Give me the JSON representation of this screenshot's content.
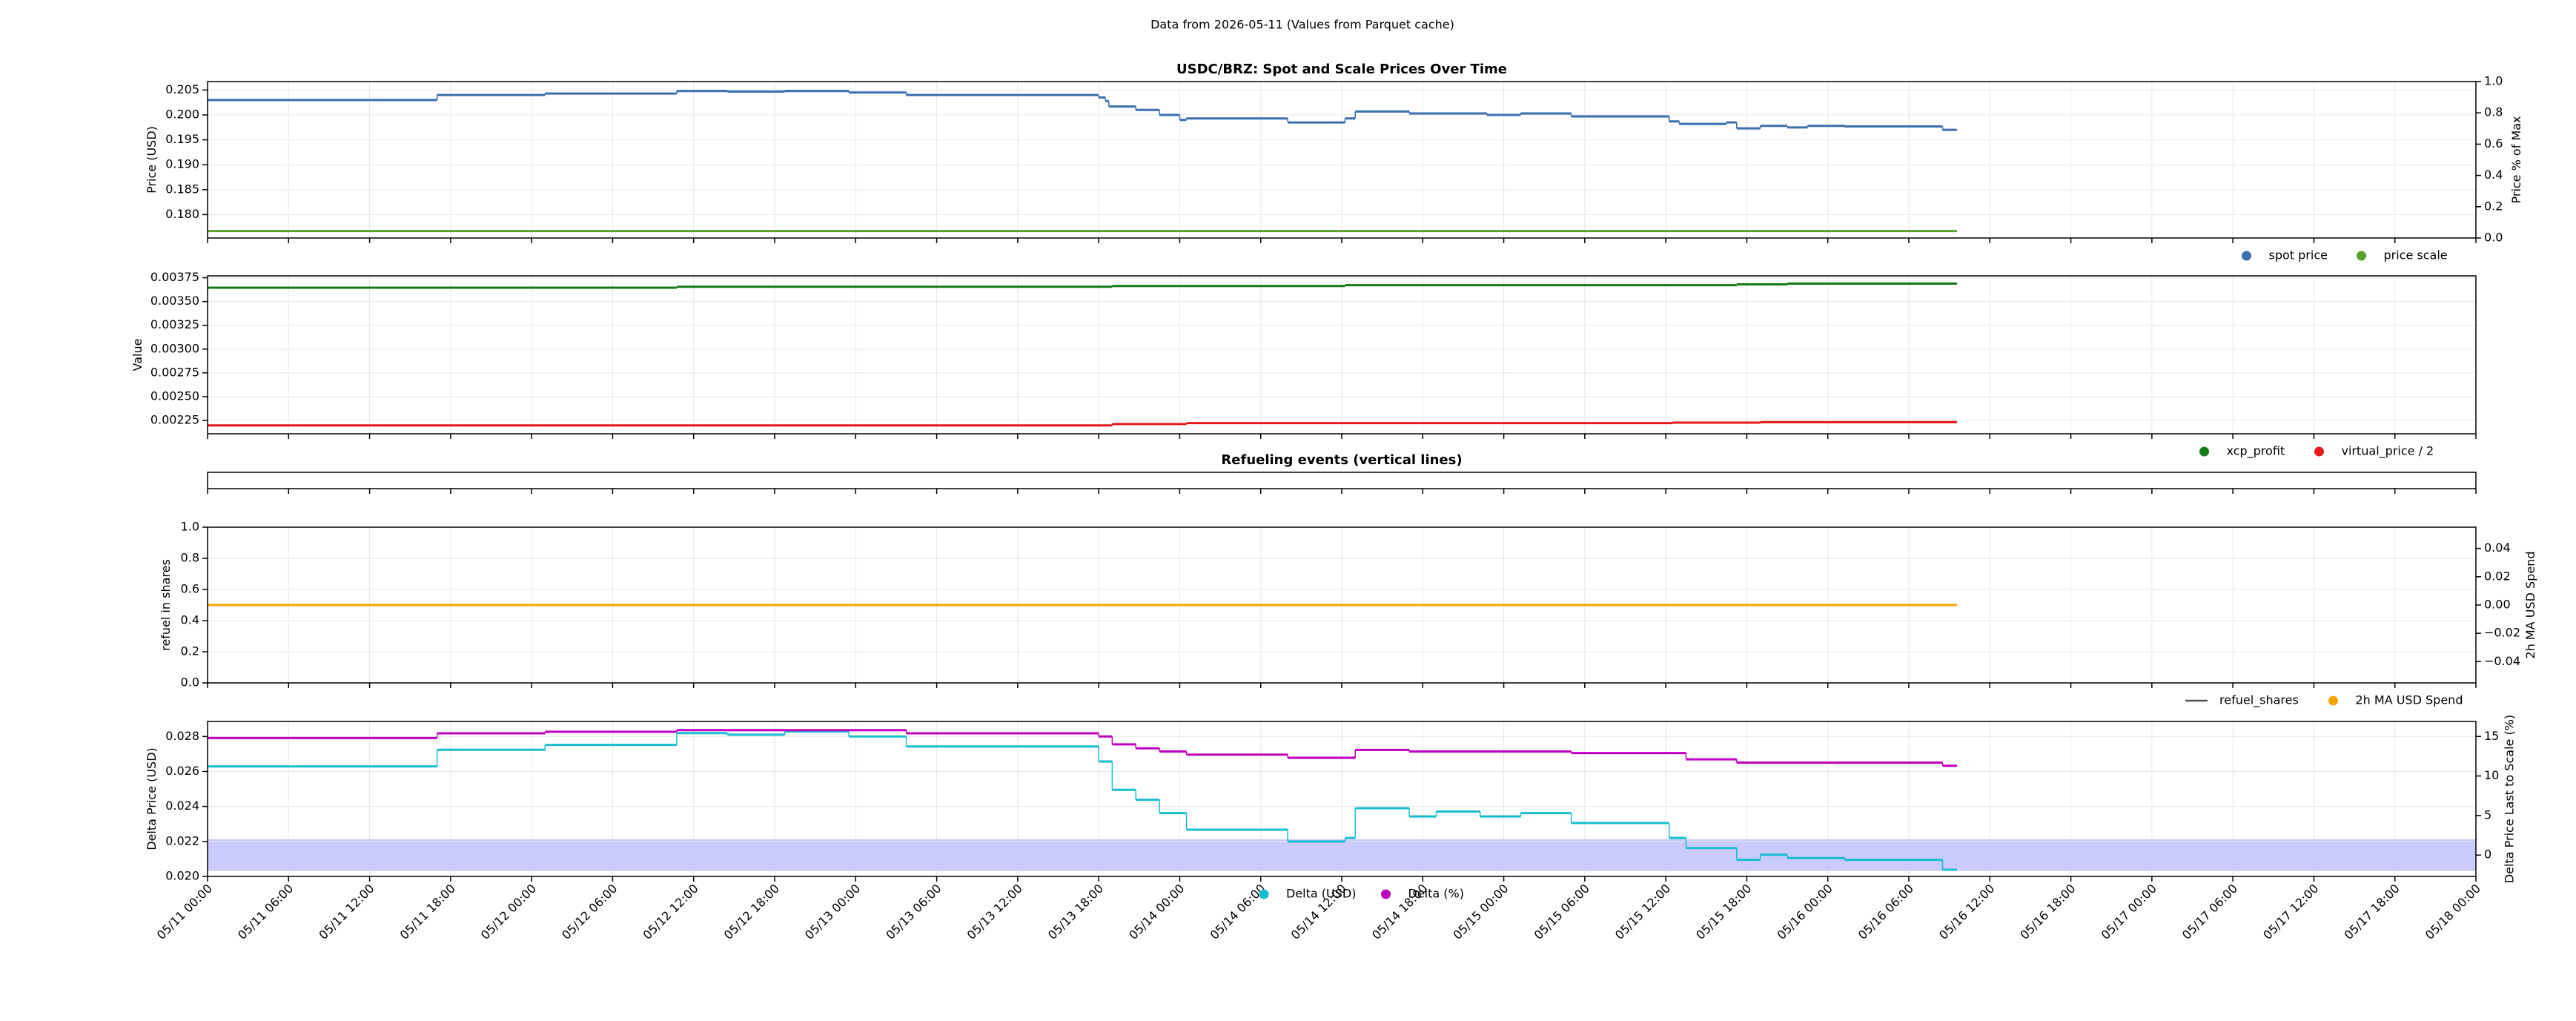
{
  "title": "Data from 2026-05-11 (Values from Parquet cache)",
  "chart_data": [
    {
      "type": "line",
      "title": "USDC/BRZ: Spot and Scale Prices Over Time",
      "ylabel": "Price (USD)",
      "y2label": "Price % of Max",
      "ylim": [
        0.1753,
        0.2067
      ],
      "yticks": [
        {
          "value": 0.18,
          "label": "0.180"
        },
        0.185,
        {
          "value": 0.19,
          "label": "0.190"
        },
        0.195,
        {
          "value": 0.2,
          "label": "0.200"
        },
        0.205
      ],
      "y2lim": [
        0,
        1
      ],
      "y2ticks": [
        {
          "value": 0,
          "label": "0.0"
        },
        0.2,
        0.4,
        0.6,
        0.8,
        {
          "value": 1,
          "label": "1.0"
        }
      ],
      "grid": true,
      "legend": "lower right",
      "series": [
        {
          "name": "spot price",
          "color": "#3b6fb0",
          "x": [
            "05/11 00:00",
            "05/11 17:00",
            "05/12 01:00",
            "05/12 10:45",
            "05/12 14:30",
            "05/12 18:45",
            "05/12 23:30",
            "05/13 03:45",
            "05/13 18:00",
            "05/13 18:30",
            "05/13 18:45",
            "05/13 20:45",
            "05/13 22:30",
            "05/14 00:00",
            "05/14 00:30",
            "05/14 08:00",
            "05/14 12:15",
            "05/14 13:00",
            "05/14 17:00",
            "05/14 22:45",
            "05/15 01:15",
            "05/15 05:00",
            "05/15 12:15",
            "05/15 13:00",
            "05/15 16:30",
            "05/15 17:15",
            "05/15 19:00",
            "05/15 21:00",
            "05/15 22:30",
            "05/16 01:15",
            "05/16 08:30",
            "05/16 09:30"
          ],
          "values": [
            0.203,
            0.204,
            0.2043,
            0.2048,
            0.2047,
            0.2048,
            0.2045,
            0.204,
            0.2035,
            0.2028,
            0.2017,
            0.201,
            0.2,
            0.199,
            0.1993,
            0.1985,
            0.1993,
            0.2007,
            0.2003,
            0.2,
            0.2003,
            0.1997,
            0.1987,
            0.1982,
            0.1985,
            0.1973,
            0.1978,
            0.1975,
            0.1978,
            0.1977,
            0.197,
            0.197
          ]
        },
        {
          "name": "price scale",
          "color": "#5aa02c",
          "x": [
            "05/11 00:00",
            "05/16 09:30"
          ],
          "values": [
            0.1767,
            0.1767
          ]
        }
      ]
    },
    {
      "type": "line",
      "ylabel": "Value",
      "ylim": [
        0.00211,
        0.00377
      ],
      "yticks": [
        0.00225,
        {
          "value": 0.0025,
          "label": "0.00250"
        },
        0.00275,
        {
          "value": 0.003,
          "label": "0.00300"
        },
        0.00325,
        {
          "value": 0.0035,
          "label": "0.00350"
        },
        0.00375
      ],
      "grid": true,
      "legend": "lower right",
      "series": [
        {
          "name": "xcp_profit",
          "color": "#167a16",
          "x": [
            "05/11 00:00",
            "05/12 10:45",
            "05/13 19:00",
            "05/14 12:15",
            "05/15 17:15",
            "05/15 21:00",
            "05/16 09:30"
          ],
          "values": [
            0.003645,
            0.003655,
            0.003663,
            0.003672,
            0.00368,
            0.003688,
            0.003688
          ]
        },
        {
          "name": "virtual_price / 2",
          "color": "#e41a1c",
          "x": [
            "05/11 00:00",
            "05/13 19:00",
            "05/14 00:30",
            "05/15 12:30",
            "05/15 19:00",
            "05/16 09:30"
          ],
          "values": [
            0.002198,
            0.002212,
            0.002222,
            0.002227,
            0.002232,
            0.002232
          ]
        }
      ]
    },
    {
      "type": "line",
      "title": "Refueling events (vertical lines)",
      "grid": false,
      "series": []
    },
    {
      "type": "line",
      "ylabel": "refuel in shares",
      "y2label": "2h MA USD Spend",
      "y2color": "#f5a300",
      "ylim": [
        0,
        1
      ],
      "yticks": [
        {
          "value": 0,
          "label": "0.0"
        },
        0.2,
        0.4,
        0.6,
        0.8,
        {
          "value": 1,
          "label": "1.0"
        }
      ],
      "y2lim": [
        -0.055,
        0.055
      ],
      "y2ticks": [
        {
          "value": -0.04,
          "label": "−0.04"
        },
        {
          "value": -0.02,
          "label": "−0.02"
        },
        {
          "value": 0,
          "label": "0.00"
        },
        0.02,
        0.04
      ],
      "grid": true,
      "legend": "lower right",
      "series": [
        {
          "name": "refuel_shares",
          "color": "#555555",
          "legend_marker": "line",
          "x": [],
          "values": []
        },
        {
          "name": "2h MA USD Spend",
          "color": "#f5a300",
          "axis": "y2",
          "x": [
            "05/11 00:00",
            "05/16 09:30"
          ],
          "values": [
            0,
            0
          ]
        }
      ]
    },
    {
      "type": "line",
      "ylabel": "Delta Price (USD)",
      "ycolor": "#17becf",
      "y2label": "Delta Price Last to Scale (%)",
      "y2color": "#c000c0",
      "ylim": [
        0.02,
        0.02886
      ],
      "yticks": [
        {
          "value": 0.02,
          "label": "0.020"
        },
        0.022,
        0.024,
        0.026,
        0.028
      ],
      "y2lim": [
        -2.7,
        16.9
      ],
      "y2ticks": [
        0,
        5,
        10,
        15
      ],
      "band": [
        -2,
        2
      ],
      "band_axis": "y2",
      "band_color": "#c4c4fb",
      "grid": true,
      "legend": "lower center",
      "xlim": [
        "05/11 00:00",
        "05/18 00:00"
      ],
      "xticks": [
        "05/11 00:00",
        "05/11 06:00",
        "05/11 12:00",
        "05/11 18:00",
        "05/12 00:00",
        "05/12 06:00",
        "05/12 12:00",
        "05/12 18:00",
        "05/13 00:00",
        "05/13 06:00",
        "05/13 12:00",
        "05/13 18:00",
        "05/14 00:00",
        "05/14 06:00",
        "05/14 12:00",
        "05/14 18:00",
        "05/15 00:00",
        "05/15 06:00",
        "05/15 12:00",
        "05/15 18:00",
        "05/16 00:00",
        "05/16 06:00",
        "05/16 12:00",
        "05/16 18:00",
        "05/17 00:00",
        "05/17 06:00",
        "05/17 12:00",
        "05/17 18:00",
        "05/18 00:00"
      ],
      "series": [
        {
          "name": "Delta (USD)",
          "color": "#17becf",
          "x": [
            "05/11 00:00",
            "05/11 17:00",
            "05/12 01:00",
            "05/12 10:45",
            "05/12 14:30",
            "05/12 18:45",
            "05/12 23:30",
            "05/13 03:45",
            "05/13 18:00",
            "05/13 19:00",
            "05/13 20:45",
            "05/13 22:30",
            "05/14 00:30",
            "05/14 08:00",
            "05/14 12:15",
            "05/14 13:00",
            "05/14 17:00",
            "05/14 19:00",
            "05/14 22:15",
            "05/15 01:15",
            "05/15 05:00",
            "05/15 12:15",
            "05/15 13:30",
            "05/15 17:15",
            "05/15 19:00",
            "05/15 21:00",
            "05/16 01:15",
            "05/16 08:30",
            "05/16 09:30"
          ],
          "values": [
            0.02629,
            0.02724,
            0.02752,
            0.02819,
            0.0281,
            0.02829,
            0.028,
            0.02743,
            0.02657,
            0.02495,
            0.02438,
            0.02362,
            0.02267,
            0.022,
            0.0222,
            0.0239,
            0.02343,
            0.02371,
            0.02343,
            0.02362,
            0.02305,
            0.0222,
            0.02162,
            0.02095,
            0.02124,
            0.02105,
            0.02095,
            0.02038,
            0.02038
          ]
        },
        {
          "name": "Delta (%)",
          "color": "#c000c0",
          "axis": "y2",
          "x": [
            "05/11 00:00",
            "05/11 17:00",
            "05/12 01:00",
            "05/12 10:45",
            "05/13 03:45",
            "05/13 18:00",
            "05/13 19:00",
            "05/13 20:45",
            "05/13 22:30",
            "05/14 00:30",
            "05/14 08:00",
            "05/14 13:00",
            "05/14 17:00",
            "05/15 05:00",
            "05/15 13:30",
            "05/15 17:15",
            "05/16 08:30",
            "05/16 09:30"
          ],
          "values": [
            14.8,
            15.4,
            15.6,
            15.8,
            15.4,
            15.0,
            14.0,
            13.5,
            13.1,
            12.7,
            12.3,
            13.3,
            13.1,
            12.9,
            12.1,
            11.7,
            11.3,
            11.3
          ]
        }
      ]
    }
  ]
}
